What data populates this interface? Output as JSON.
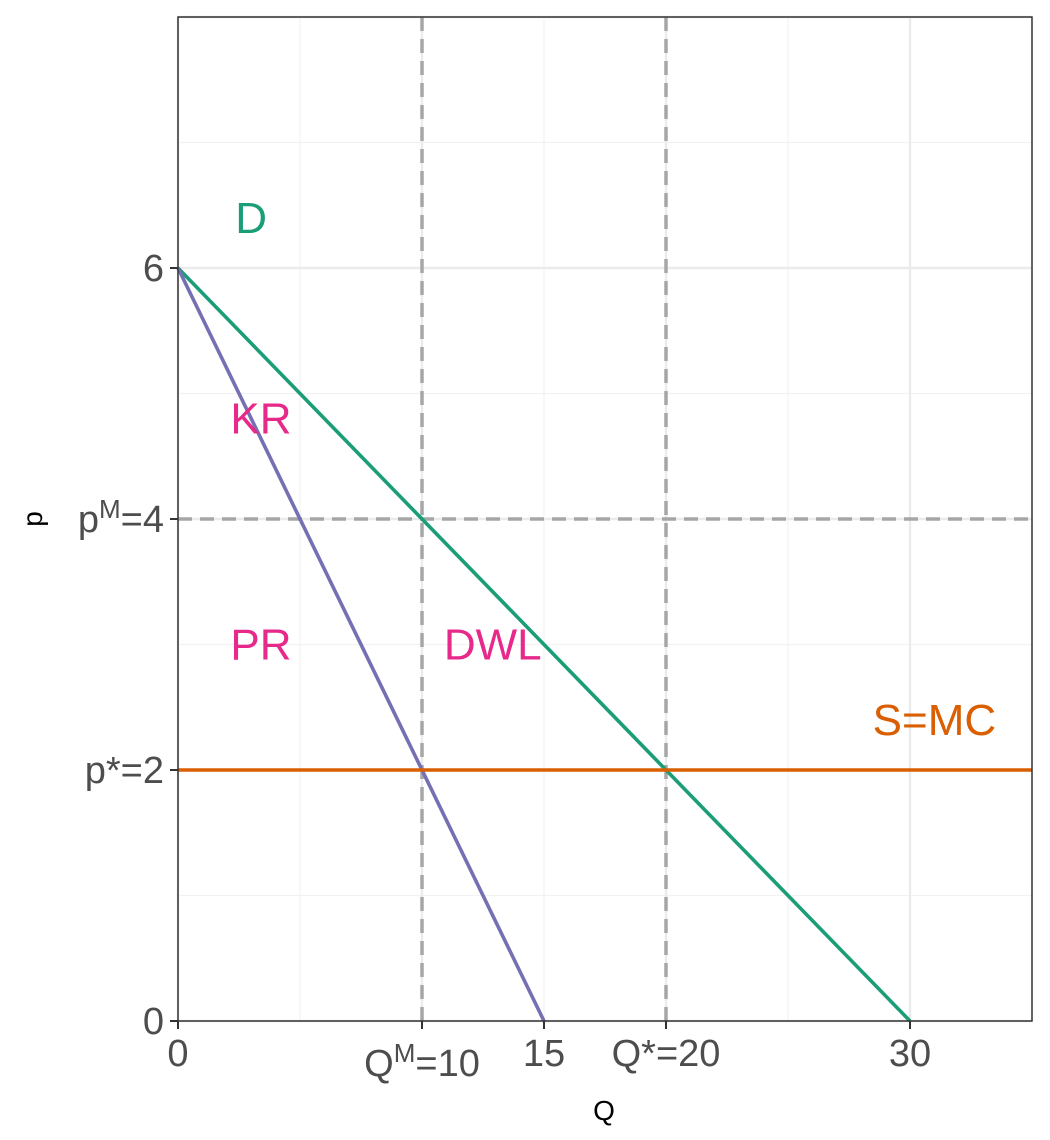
{
  "chart_data": {
    "type": "line",
    "xlabel": "Q",
    "ylabel": "p",
    "xlim": [
      0,
      35
    ],
    "ylim": [
      0,
      8
    ],
    "grid": true,
    "x_ticks": [
      {
        "value": 0,
        "label": "0",
        "row": 1
      },
      {
        "value": 10,
        "label": "Q",
        "sup": "M",
        "suffix": "=10",
        "row": 2
      },
      {
        "value": 15,
        "label": "15",
        "row": 1
      },
      {
        "value": 20,
        "label": "Q*=20",
        "row": 1
      },
      {
        "value": 30,
        "label": "30",
        "row": 1
      }
    ],
    "y_ticks": [
      {
        "value": 0,
        "label": "0"
      },
      {
        "value": 2,
        "label": "p*=2"
      },
      {
        "value": 4,
        "label": "p",
        "sup": "M",
        "suffix": "=4"
      },
      {
        "value": 6,
        "label": "6"
      }
    ],
    "series": [
      {
        "key": "demand",
        "color": "#1b9e77",
        "x": [
          0,
          30
        ],
        "y": [
          6,
          0
        ]
      },
      {
        "key": "mr",
        "color": "#7570b3",
        "x": [
          0,
          15
        ],
        "y": [
          6,
          0
        ]
      },
      {
        "key": "supply",
        "color": "#d95f02",
        "x": [
          0,
          35
        ],
        "y": [
          2,
          2
        ]
      }
    ],
    "reference_lines": [
      {
        "orientation": "vertical",
        "value": 10
      },
      {
        "orientation": "vertical",
        "value": 20
      },
      {
        "orientation": "horizontal",
        "value": 4
      }
    ],
    "annotations": [
      {
        "text": "D",
        "x": 3,
        "y": 6.4,
        "color": "#1b9e77"
      },
      {
        "text": "KR",
        "x": 3.4,
        "y": 4.8,
        "color": "#e7298a"
      },
      {
        "text": "PR",
        "x": 3.4,
        "y": 3.0,
        "color": "#e7298a"
      },
      {
        "text": "DWL",
        "x": 12.9,
        "y": 3.0,
        "color": "#e7298a"
      },
      {
        "text": "S=MC",
        "x": 31,
        "y": 2.4,
        "color": "#d95f02"
      }
    ],
    "colors": {
      "reference": "#a6a6a6",
      "grid_major": "#ebebeb",
      "grid_minor": "#f2f2f2",
      "panel_border": "#333333"
    }
  }
}
